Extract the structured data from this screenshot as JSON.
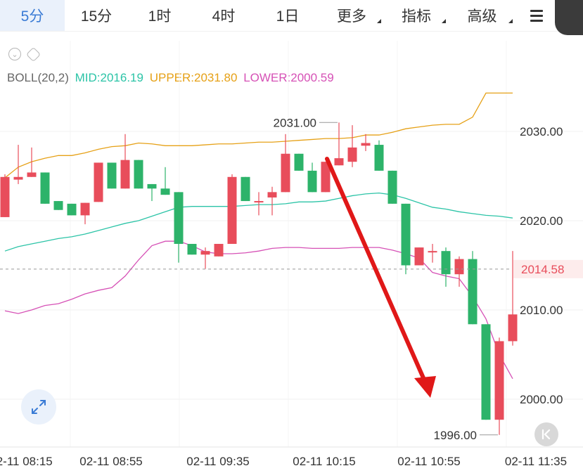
{
  "tabs": [
    {
      "label": "5分",
      "active": true
    },
    {
      "label": "15分",
      "active": false
    },
    {
      "label": "1时",
      "active": false
    },
    {
      "label": "4时",
      "active": false
    },
    {
      "label": "1日",
      "active": false
    },
    {
      "label": "更多",
      "active": false,
      "dropdown": true
    },
    {
      "label": "指标",
      "active": false,
      "dropdown": true
    },
    {
      "label": "高级",
      "active": false,
      "dropdown": true
    }
  ],
  "indicator": {
    "name": "BOLL(20,2)",
    "mid_label": "MID:2016.19",
    "upper_label": "UPPER:2031.80",
    "lower_label": "LOWER:2000.59"
  },
  "colors": {
    "accent": "#3a7bd5",
    "up": "#e84d5b",
    "down": "#2db36a",
    "upper": "#e6a117",
    "mid": "#2cc4a7",
    "lower": "#d651b6",
    "arrow": "#e01818"
  },
  "icons": [
    "chevron-down-icon",
    "gear-icon",
    "menu-icon",
    "expand-icon",
    "collapse-icon"
  ],
  "price_axis": {
    "ticks": [
      "2030.00",
      "2020.00",
      "2010.00",
      "2000.00"
    ],
    "current_price": "2014.58",
    "high_marker": "2031.00",
    "low_marker": "1996.00"
  },
  "time_axis": [
    "02-11 08:15",
    "02-11 08:55",
    "02-11 09:35",
    "02-11 10:15",
    "02-11 10:55",
    "02-11 11:35"
  ],
  "chart_data": {
    "type": "candlestick",
    "interval": "5分",
    "ylim": [
      1995,
      2035
    ],
    "current_price": 2014.58,
    "y_ticks": [
      2030,
      2020,
      2010,
      2000
    ],
    "x_tick_labels": [
      "02-11 08:15",
      "02-11 08:55",
      "02-11 09:35",
      "02-11 10:15",
      "02-11 10:55",
      "02-11 11:35"
    ],
    "annotations": [
      "2031.00",
      "1996.00"
    ],
    "candles": [
      {
        "o": 2020.4,
        "h": 2025.2,
        "l": 2020.4,
        "c": 2024.9
      },
      {
        "o": 2024.6,
        "h": 2028.5,
        "l": 2024.1,
        "c": 2024.9
      },
      {
        "o": 2024.9,
        "h": 2028.2,
        "l": 2024.9,
        "c": 2025.4
      },
      {
        "o": 2025.4,
        "h": 2025.4,
        "l": 2021.9,
        "c": 2021.9
      },
      {
        "o": 2022.2,
        "h": 2022.2,
        "l": 2021.2,
        "c": 2021.2
      },
      {
        "o": 2021.9,
        "h": 2021.9,
        "l": 2020.6,
        "c": 2020.6
      },
      {
        "o": 2020.6,
        "h": 2022.0,
        "l": 2019.6,
        "c": 2022.0
      },
      {
        "o": 2022.1,
        "h": 2026.5,
        "l": 2022.1,
        "c": 2026.5
      },
      {
        "o": 2026.5,
        "h": 2026.5,
        "l": 2023.6,
        "c": 2023.6
      },
      {
        "o": 2023.6,
        "h": 2029.7,
        "l": 2023.6,
        "c": 2026.8
      },
      {
        "o": 2026.8,
        "h": 2026.8,
        "l": 2023.6,
        "c": 2023.6
      },
      {
        "o": 2024.1,
        "h": 2024.1,
        "l": 2022.2,
        "c": 2023.6
      },
      {
        "o": 2023.6,
        "h": 2026.0,
        "l": 2022.9,
        "c": 2022.9
      },
      {
        "o": 2023.2,
        "h": 2023.2,
        "l": 2015.3,
        "c": 2017.4
      },
      {
        "o": 2017.4,
        "h": 2017.4,
        "l": 2016.2,
        "c": 2016.2
      },
      {
        "o": 2016.2,
        "h": 2017.0,
        "l": 2014.6,
        "c": 2016.6
      },
      {
        "o": 2016.0,
        "h": 2017.4,
        "l": 2016.0,
        "c": 2017.4
      },
      {
        "o": 2017.4,
        "h": 2025.2,
        "l": 2017.4,
        "c": 2024.9
      },
      {
        "o": 2024.9,
        "h": 2024.9,
        "l": 2022.2,
        "c": 2022.2
      },
      {
        "o": 2022.2,
        "h": 2023.2,
        "l": 2020.6,
        "c": 2022.2
      },
      {
        "o": 2022.6,
        "h": 2023.8,
        "l": 2020.6,
        "c": 2023.2
      },
      {
        "o": 2023.2,
        "h": 2029.7,
        "l": 2023.2,
        "c": 2027.5
      },
      {
        "o": 2027.5,
        "h": 2027.5,
        "l": 2025.6,
        "c": 2025.6
      },
      {
        "o": 2025.6,
        "h": 2026.5,
        "l": 2023.2,
        "c": 2023.2
      },
      {
        "o": 2023.2,
        "h": 2026.6,
        "l": 2023.2,
        "c": 2026.6
      },
      {
        "o": 2026.2,
        "h": 2031.0,
        "l": 2026.2,
        "c": 2027.0
      },
      {
        "o": 2026.6,
        "h": 2030.7,
        "l": 2026.0,
        "c": 2028.2
      },
      {
        "o": 2028.4,
        "h": 2029.7,
        "l": 2027.8,
        "c": 2028.7
      },
      {
        "o": 2028.5,
        "h": 2029.0,
        "l": 2025.6,
        "c": 2025.6
      },
      {
        "o": 2025.6,
        "h": 2025.6,
        "l": 2021.9,
        "c": 2021.9
      },
      {
        "o": 2021.9,
        "h": 2021.9,
        "l": 2014.0,
        "c": 2015.0
      },
      {
        "o": 2015.0,
        "h": 2017.0,
        "l": 2015.0,
        "c": 2017.0
      },
      {
        "o": 2016.6,
        "h": 2017.4,
        "l": 2015.3,
        "c": 2016.6
      },
      {
        "o": 2016.6,
        "h": 2017.0,
        "l": 2012.6,
        "c": 2014.0
      },
      {
        "o": 2014.0,
        "h": 2016.0,
        "l": 2012.6,
        "c": 2015.7
      },
      {
        "o": 2015.7,
        "h": 2016.6,
        "l": 2008.4,
        "c": 2008.4
      },
      {
        "o": 2008.4,
        "h": 2008.4,
        "l": 1997.7,
        "c": 1997.7
      },
      {
        "o": 1997.7,
        "h": 2006.9,
        "l": 1996.0,
        "c": 2006.5
      },
      {
        "o": 2006.5,
        "h": 2016.6,
        "l": 2006.0,
        "c": 2009.5
      }
    ],
    "series": [
      {
        "name": "UPPER",
        "values": [
          2024.8,
          2026.0,
          2026.6,
          2027.0,
          2027.3,
          2027.3,
          2027.6,
          2028.0,
          2028.3,
          2028.4,
          2028.7,
          2028.6,
          2028.4,
          2028.4,
          2028.4,
          2028.5,
          2028.6,
          2028.6,
          2028.7,
          2028.8,
          2028.8,
          2028.9,
          2029.0,
          2029.1,
          2029.2,
          2029.2,
          2029.3,
          2029.6,
          2029.6,
          2029.9,
          2030.3,
          2030.5,
          2030.7,
          2030.8,
          2030.8,
          2031.6,
          2034.3,
          2034.3,
          2034.3
        ]
      },
      {
        "name": "MID",
        "values": [
          2016.6,
          2017.1,
          2017.4,
          2017.7,
          2018.0,
          2018.2,
          2018.5,
          2018.9,
          2019.3,
          2019.7,
          2020.0,
          2020.5,
          2021.0,
          2021.5,
          2021.6,
          2021.6,
          2021.6,
          2021.6,
          2021.7,
          2021.8,
          2021.8,
          2021.9,
          2022.1,
          2022.1,
          2022.2,
          2022.5,
          2022.8,
          2023.0,
          2023.1,
          2022.9,
          2022.5,
          2022.0,
          2021.5,
          2021.3,
          2021.0,
          2020.8,
          2020.6,
          2020.5,
          2020.3
        ]
      },
      {
        "name": "LOWER",
        "values": [
          2009.9,
          2009.6,
          2010.0,
          2010.5,
          2010.7,
          2011.2,
          2011.8,
          2012.2,
          2012.5,
          2013.8,
          2015.6,
          2017.2,
          2017.7,
          2017.7,
          2017.2,
          2016.5,
          2016.3,
          2016.3,
          2016.4,
          2016.6,
          2016.9,
          2017.0,
          2017.0,
          2016.9,
          2016.9,
          2016.9,
          2017.0,
          2017.0,
          2017.0,
          2016.7,
          2016.3,
          2015.8,
          2014.2,
          2013.8,
          2013.5,
          2011.5,
          2009.0,
          2005.0,
          2002.3
        ]
      }
    ]
  }
}
